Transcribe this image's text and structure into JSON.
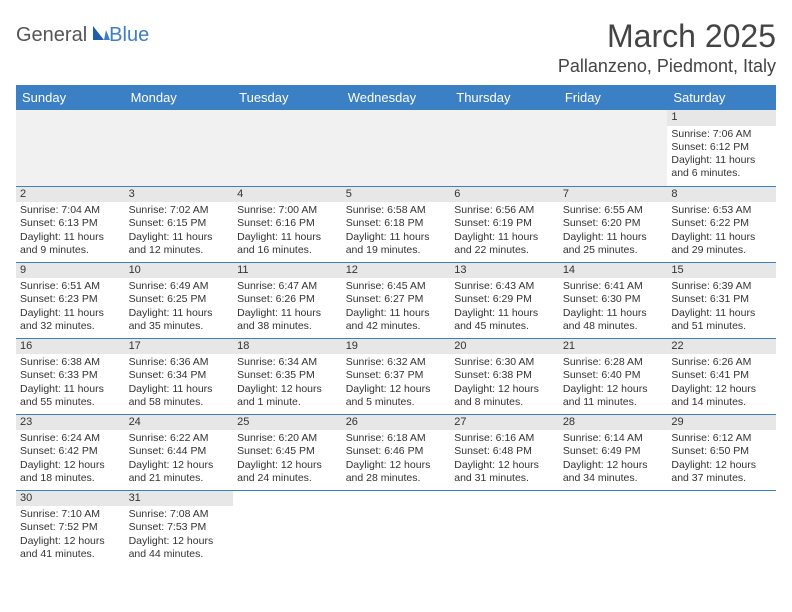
{
  "logo": {
    "general": "General",
    "blue": "Blue"
  },
  "title": "March 2025",
  "location": "Pallanzeno, Piedmont, Italy",
  "columns": [
    "Sunday",
    "Monday",
    "Tuesday",
    "Wednesday",
    "Thursday",
    "Friday",
    "Saturday"
  ],
  "colors": {
    "header_bg": "#3b7fc4",
    "header_text": "#ffffff",
    "border": "#3b7fc4",
    "daynum_bg": "#e7e7e7",
    "empty_bg": "#f1f1f1",
    "text": "#333333",
    "logo_blue": "#3b7fc4",
    "logo_gray": "#555555"
  },
  "weeks": [
    [
      null,
      null,
      null,
      null,
      null,
      null,
      {
        "n": "1",
        "sunrise": "Sunrise: 7:06 AM",
        "sunset": "Sunset: 6:12 PM",
        "daylight": "Daylight: 11 hours and 6 minutes."
      }
    ],
    [
      {
        "n": "2",
        "sunrise": "Sunrise: 7:04 AM",
        "sunset": "Sunset: 6:13 PM",
        "daylight": "Daylight: 11 hours and 9 minutes."
      },
      {
        "n": "3",
        "sunrise": "Sunrise: 7:02 AM",
        "sunset": "Sunset: 6:15 PM",
        "daylight": "Daylight: 11 hours and 12 minutes."
      },
      {
        "n": "4",
        "sunrise": "Sunrise: 7:00 AM",
        "sunset": "Sunset: 6:16 PM",
        "daylight": "Daylight: 11 hours and 16 minutes."
      },
      {
        "n": "5",
        "sunrise": "Sunrise: 6:58 AM",
        "sunset": "Sunset: 6:18 PM",
        "daylight": "Daylight: 11 hours and 19 minutes."
      },
      {
        "n": "6",
        "sunrise": "Sunrise: 6:56 AM",
        "sunset": "Sunset: 6:19 PM",
        "daylight": "Daylight: 11 hours and 22 minutes."
      },
      {
        "n": "7",
        "sunrise": "Sunrise: 6:55 AM",
        "sunset": "Sunset: 6:20 PM",
        "daylight": "Daylight: 11 hours and 25 minutes."
      },
      {
        "n": "8",
        "sunrise": "Sunrise: 6:53 AM",
        "sunset": "Sunset: 6:22 PM",
        "daylight": "Daylight: 11 hours and 29 minutes."
      }
    ],
    [
      {
        "n": "9",
        "sunrise": "Sunrise: 6:51 AM",
        "sunset": "Sunset: 6:23 PM",
        "daylight": "Daylight: 11 hours and 32 minutes."
      },
      {
        "n": "10",
        "sunrise": "Sunrise: 6:49 AM",
        "sunset": "Sunset: 6:25 PM",
        "daylight": "Daylight: 11 hours and 35 minutes."
      },
      {
        "n": "11",
        "sunrise": "Sunrise: 6:47 AM",
        "sunset": "Sunset: 6:26 PM",
        "daylight": "Daylight: 11 hours and 38 minutes."
      },
      {
        "n": "12",
        "sunrise": "Sunrise: 6:45 AM",
        "sunset": "Sunset: 6:27 PM",
        "daylight": "Daylight: 11 hours and 42 minutes."
      },
      {
        "n": "13",
        "sunrise": "Sunrise: 6:43 AM",
        "sunset": "Sunset: 6:29 PM",
        "daylight": "Daylight: 11 hours and 45 minutes."
      },
      {
        "n": "14",
        "sunrise": "Sunrise: 6:41 AM",
        "sunset": "Sunset: 6:30 PM",
        "daylight": "Daylight: 11 hours and 48 minutes."
      },
      {
        "n": "15",
        "sunrise": "Sunrise: 6:39 AM",
        "sunset": "Sunset: 6:31 PM",
        "daylight": "Daylight: 11 hours and 51 minutes."
      }
    ],
    [
      {
        "n": "16",
        "sunrise": "Sunrise: 6:38 AM",
        "sunset": "Sunset: 6:33 PM",
        "daylight": "Daylight: 11 hours and 55 minutes."
      },
      {
        "n": "17",
        "sunrise": "Sunrise: 6:36 AM",
        "sunset": "Sunset: 6:34 PM",
        "daylight": "Daylight: 11 hours and 58 minutes."
      },
      {
        "n": "18",
        "sunrise": "Sunrise: 6:34 AM",
        "sunset": "Sunset: 6:35 PM",
        "daylight": "Daylight: 12 hours and 1 minute."
      },
      {
        "n": "19",
        "sunrise": "Sunrise: 6:32 AM",
        "sunset": "Sunset: 6:37 PM",
        "daylight": "Daylight: 12 hours and 5 minutes."
      },
      {
        "n": "20",
        "sunrise": "Sunrise: 6:30 AM",
        "sunset": "Sunset: 6:38 PM",
        "daylight": "Daylight: 12 hours and 8 minutes."
      },
      {
        "n": "21",
        "sunrise": "Sunrise: 6:28 AM",
        "sunset": "Sunset: 6:40 PM",
        "daylight": "Daylight: 12 hours and 11 minutes."
      },
      {
        "n": "22",
        "sunrise": "Sunrise: 6:26 AM",
        "sunset": "Sunset: 6:41 PM",
        "daylight": "Daylight: 12 hours and 14 minutes."
      }
    ],
    [
      {
        "n": "23",
        "sunrise": "Sunrise: 6:24 AM",
        "sunset": "Sunset: 6:42 PM",
        "daylight": "Daylight: 12 hours and 18 minutes."
      },
      {
        "n": "24",
        "sunrise": "Sunrise: 6:22 AM",
        "sunset": "Sunset: 6:44 PM",
        "daylight": "Daylight: 12 hours and 21 minutes."
      },
      {
        "n": "25",
        "sunrise": "Sunrise: 6:20 AM",
        "sunset": "Sunset: 6:45 PM",
        "daylight": "Daylight: 12 hours and 24 minutes."
      },
      {
        "n": "26",
        "sunrise": "Sunrise: 6:18 AM",
        "sunset": "Sunset: 6:46 PM",
        "daylight": "Daylight: 12 hours and 28 minutes."
      },
      {
        "n": "27",
        "sunrise": "Sunrise: 6:16 AM",
        "sunset": "Sunset: 6:48 PM",
        "daylight": "Daylight: 12 hours and 31 minutes."
      },
      {
        "n": "28",
        "sunrise": "Sunrise: 6:14 AM",
        "sunset": "Sunset: 6:49 PM",
        "daylight": "Daylight: 12 hours and 34 minutes."
      },
      {
        "n": "29",
        "sunrise": "Sunrise: 6:12 AM",
        "sunset": "Sunset: 6:50 PM",
        "daylight": "Daylight: 12 hours and 37 minutes."
      }
    ],
    [
      {
        "n": "30",
        "sunrise": "Sunrise: 7:10 AM",
        "sunset": "Sunset: 7:52 PM",
        "daylight": "Daylight: 12 hours and 41 minutes."
      },
      {
        "n": "31",
        "sunrise": "Sunrise: 7:08 AM",
        "sunset": "Sunset: 7:53 PM",
        "daylight": "Daylight: 12 hours and 44 minutes."
      },
      null,
      null,
      null,
      null,
      null
    ]
  ]
}
